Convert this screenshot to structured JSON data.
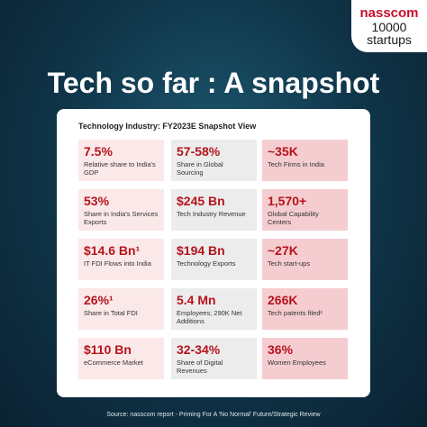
{
  "logo": {
    "brand": "nasscom",
    "line1": "10000",
    "line2": "startups"
  },
  "title": "Tech so far : A snapshot",
  "card": {
    "heading": "Technology Industry: FY2023E Snapshot View",
    "rows": [
      [
        {
          "value": "7.5%",
          "label": "Relative share to India's GDP"
        },
        {
          "value": "57-58%",
          "label": "Share in Global Sourcing"
        },
        {
          "value": "~35K",
          "label": "Tech Firms in India"
        }
      ],
      [
        {
          "value": "53%",
          "label": "Share in India's Services Exports"
        },
        {
          "value": "$245 Bn",
          "label": "Tech Industry Revenue"
        },
        {
          "value": "1,570+",
          "label": "Global Capability Centers"
        }
      ],
      [
        {
          "value": "$14.6 Bn¹",
          "label": "IT FDI Flows into India"
        },
        {
          "value": "$194 Bn",
          "label": "Technology Exports"
        },
        {
          "value": "~27K",
          "label": "Tech start-ups"
        }
      ],
      [
        {
          "value": "26%¹",
          "label": "Share in Total FDI"
        },
        {
          "value": "5.4 Mn",
          "label": "Employees; 290K Net Additions"
        },
        {
          "value": "266K",
          "label": "Tech patents filed²"
        }
      ],
      [
        {
          "value": "$110 Bn",
          "label": "eCommerce Market"
        },
        {
          "value": "32-34%",
          "label": "Share of Digital Revenues"
        },
        {
          "value": "36%",
          "label": "Women Employees"
        }
      ]
    ]
  },
  "source": "Source: nasscom report - Priming For A 'No Normal' Future/Strategic Review"
}
